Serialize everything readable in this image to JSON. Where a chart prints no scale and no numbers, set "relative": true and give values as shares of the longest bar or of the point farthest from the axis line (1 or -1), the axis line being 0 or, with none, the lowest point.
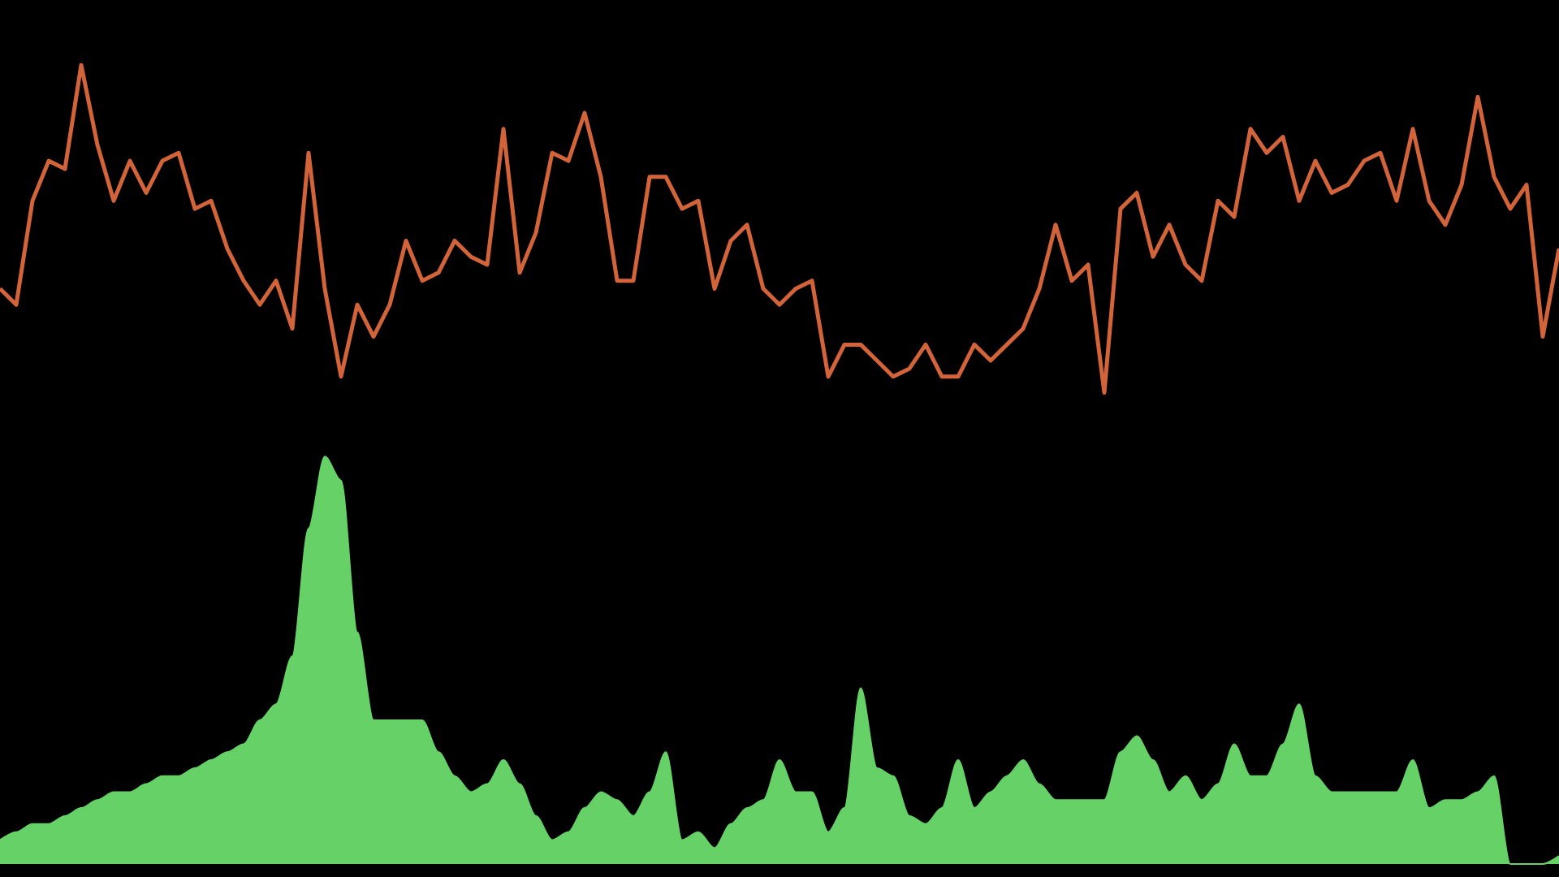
{
  "chart_data": {
    "type": "line",
    "relative": true,
    "marker": "none",
    "categories": [
      null,
      null,
      null,
      null,
      null,
      null,
      null,
      null,
      null,
      null,
      null,
      null,
      null,
      null,
      null,
      null,
      null,
      null,
      null,
      null,
      null,
      null,
      null,
      null,
      null,
      null,
      null,
      null,
      null,
      null,
      null,
      null,
      null,
      null,
      null,
      null,
      null,
      null,
      null,
      null,
      null,
      null,
      null,
      null,
      null,
      null,
      null,
      null,
      null,
      null,
      null,
      null,
      null,
      null,
      null,
      null,
      null,
      null,
      null,
      null,
      null,
      null,
      null,
      null,
      null,
      null,
      null,
      null,
      null,
      null,
      null,
      null,
      null,
      null,
      null,
      null,
      null,
      null,
      null,
      null,
      null,
      null,
      null,
      null,
      null,
      null,
      null,
      null,
      null,
      null,
      null,
      null,
      null,
      null,
      null,
      null,
      null
    ],
    "series": [
      {
        "color": "#d3643a",
        "values": [
          0.72,
          0.7,
          0.83,
          0.88,
          0.87,
          1.0,
          0.9,
          0.83,
          0.88,
          0.84,
          0.88,
          0.89,
          0.82,
          0.83,
          0.77,
          0.73,
          0.7,
          0.73,
          0.67,
          0.89,
          0.72,
          0.61,
          0.7,
          0.66,
          0.7,
          0.78,
          0.73,
          0.74,
          0.78,
          0.76,
          0.75,
          0.92,
          0.74,
          0.79,
          0.89,
          0.88,
          0.94,
          0.86,
          0.73,
          0.73,
          0.86,
          0.86,
          0.82,
          0.83,
          0.72,
          0.78,
          0.8,
          0.72,
          0.7,
          0.72,
          0.73,
          0.61,
          0.65,
          0.65,
          0.63,
          0.61,
          0.62,
          0.65,
          0.61,
          0.61,
          0.65,
          0.63,
          0.65,
          0.67,
          0.72,
          0.8,
          0.73,
          0.75,
          0.59,
          0.82,
          0.84,
          0.76,
          0.8,
          0.75,
          0.73,
          0.83,
          0.81,
          0.92,
          0.89,
          0.91,
          0.83,
          0.88,
          0.84,
          0.85,
          0.88,
          0.89,
          0.83,
          0.92,
          0.83,
          0.8,
          0.85,
          0.96,
          0.86,
          0.82,
          0.85,
          0.66,
          0.77
        ]
      },
      {
        "type": "area",
        "color": "#66d166",
        "values": [
          0.03,
          0.04,
          0.05,
          0.05,
          0.06,
          0.07,
          0.08,
          0.09,
          0.09,
          0.1,
          0.11,
          0.11,
          0.12,
          0.13,
          0.14,
          0.15,
          0.18,
          0.2,
          0.26,
          0.42,
          0.51,
          0.48,
          0.29,
          0.18,
          0.18,
          0.18,
          0.18,
          0.14,
          0.11,
          0.09,
          0.1,
          0.13,
          0.1,
          0.06,
          0.03,
          0.04,
          0.07,
          0.09,
          0.08,
          0.06,
          0.09,
          0.14,
          0.03,
          0.04,
          0.02,
          0.05,
          0.07,
          0.08,
          0.13,
          0.09,
          0.09,
          0.04,
          0.07,
          0.22,
          0.12,
          0.11,
          0.06,
          0.05,
          0.07,
          0.13,
          0.07,
          0.09,
          0.11,
          0.13,
          0.1,
          0.08,
          0.08,
          0.08,
          0.08,
          0.14,
          0.16,
          0.13,
          0.09,
          0.11,
          0.08,
          0.1,
          0.15,
          0.11,
          0.11,
          0.15,
          0.2,
          0.11,
          0.09,
          0.09,
          0.09,
          0.09,
          0.09,
          0.13,
          0.07,
          0.08,
          0.08,
          0.09,
          0.11,
          0,
          0,
          0,
          0.01
        ]
      }
    ]
  }
}
